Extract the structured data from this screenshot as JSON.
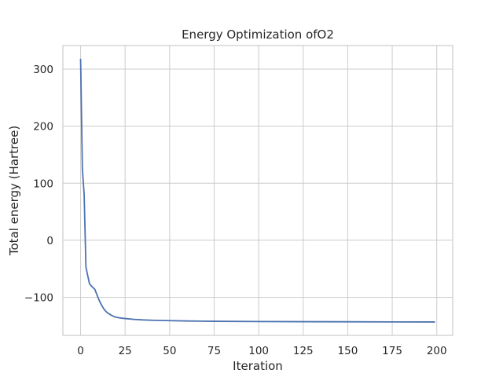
{
  "chart_data": {
    "type": "line",
    "title": "Energy Optimization ofO2",
    "xlabel": "Iteration",
    "ylabel": "Total energy (Hartree)",
    "xlim": [
      -9.95,
      208.95
    ],
    "ylim": [
      -166.7,
      341.3
    ],
    "xticks": [
      0,
      25,
      50,
      75,
      100,
      125,
      150,
      175,
      200
    ],
    "yticks": [
      -100,
      0,
      100,
      200,
      300
    ],
    "xtick_labels": [
      "0",
      "25",
      "50",
      "75",
      "100",
      "125",
      "150",
      "175",
      "200"
    ],
    "ytick_labels": [
      "−100",
      "0",
      "100",
      "200",
      "300"
    ],
    "grid": true,
    "line_color": "#4c72b0",
    "grid_color": "#cccccc",
    "series": [
      {
        "x": [
          0,
          1,
          2,
          3,
          4,
          5,
          6,
          7,
          8,
          9,
          10,
          11,
          12,
          13,
          14,
          15,
          17,
          19,
          21,
          23,
          25,
          30,
          35,
          40,
          50,
          60,
          75,
          100,
          125,
          150,
          175,
          199
        ],
        "y": [
          318,
          125,
          80,
          -47,
          -62,
          -76,
          -80,
          -83,
          -86,
          -94,
          -102,
          -109,
          -115,
          -120,
          -124,
          -127,
          -131,
          -134,
          -135.5,
          -136.5,
          -137.2,
          -138.6,
          -139.6,
          -140.2,
          -140.9,
          -141.5,
          -142,
          -142.4,
          -142.7,
          -142.9,
          -143.1,
          -143.2
        ]
      }
    ]
  }
}
